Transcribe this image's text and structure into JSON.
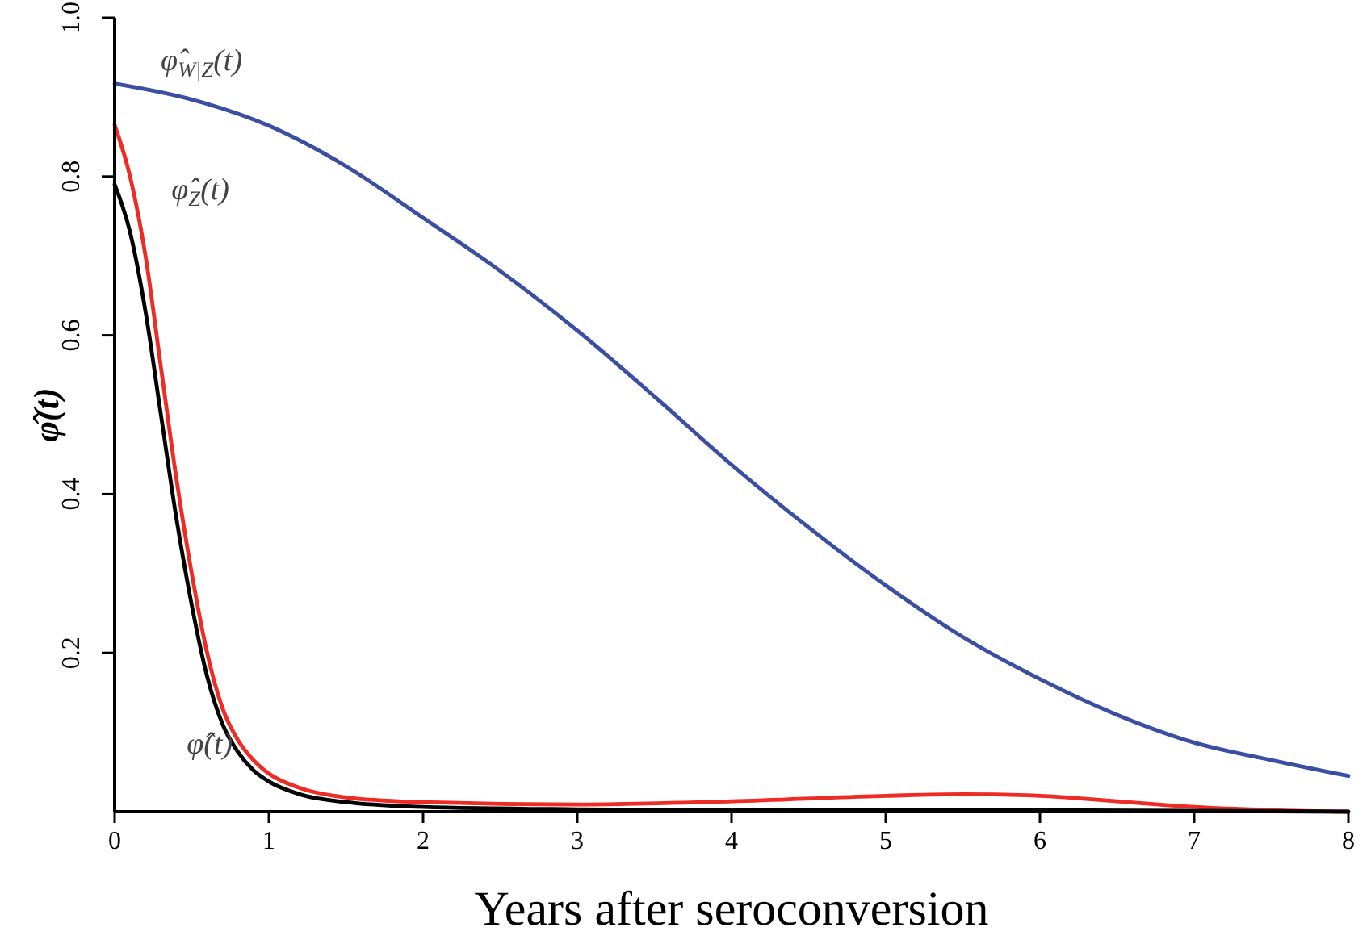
{
  "chart_data": {
    "type": "line",
    "xlabel": "Years after seroconversion",
    "ylabel": "φ̂(t)",
    "xlim": [
      0,
      8
    ],
    "ylim": [
      0,
      1
    ],
    "xticks": [
      0,
      1,
      2,
      3,
      4,
      5,
      6,
      7,
      8
    ],
    "yticks": [
      {
        "value": 0.2,
        "label": "0.2"
      },
      {
        "value": 0.4,
        "label": "0.4"
      },
      {
        "value": 0.6,
        "label": "0.6"
      },
      {
        "value": 0.8,
        "label": "0.8"
      },
      {
        "value": 1,
        "label": "1.0"
      }
    ],
    "grid": false,
    "line_style": "solid",
    "marker": "none",
    "series": [
      {
        "name": "φ̂$_{W|Z}$(t)",
        "color": "#3a4fa3",
        "x": [
          0,
          0.5,
          1,
          1.5,
          2,
          2.5,
          3,
          3.5,
          4,
          4.5,
          5,
          5.5,
          6,
          6.5,
          7,
          7.5,
          8
        ],
        "values": [
          0.917,
          0.897,
          0.864,
          0.813,
          0.748,
          0.681,
          0.606,
          0.523,
          0.437,
          0.358,
          0.285,
          0.22,
          0.167,
          0.122,
          0.087,
          0.065,
          0.045
        ]
      },
      {
        "name": "φ̂$_{Z}$(t)",
        "color": "#ee2b24",
        "x": [
          0,
          0.1,
          0.2,
          0.3,
          0.4,
          0.5,
          0.6,
          0.7,
          0.8,
          0.9,
          1,
          1.2,
          1.5,
          2,
          3,
          4,
          5,
          5.5,
          6,
          6.5,
          7,
          7.5,
          8
        ],
        "values": [
          0.865,
          0.8,
          0.7,
          0.56,
          0.42,
          0.3,
          0.2,
          0.13,
          0.09,
          0.065,
          0.048,
          0.03,
          0.018,
          0.012,
          0.009,
          0.013,
          0.02,
          0.022,
          0.02,
          0.013,
          0.006,
          0.002,
          0
        ]
      },
      {
        "name": "φ̂(t)",
        "color": "#000000",
        "x": [
          0,
          0.1,
          0.2,
          0.3,
          0.4,
          0.5,
          0.6,
          0.7,
          0.8,
          0.9,
          1,
          1.2,
          1.5,
          2,
          3,
          4,
          5,
          6,
          7,
          8
        ],
        "values": [
          0.79,
          0.73,
          0.63,
          0.5,
          0.37,
          0.26,
          0.17,
          0.11,
          0.075,
          0.052,
          0.038,
          0.022,
          0.012,
          0.006,
          0.003,
          0.002,
          0.002,
          0.002,
          0.001,
          0
        ]
      }
    ]
  }
}
